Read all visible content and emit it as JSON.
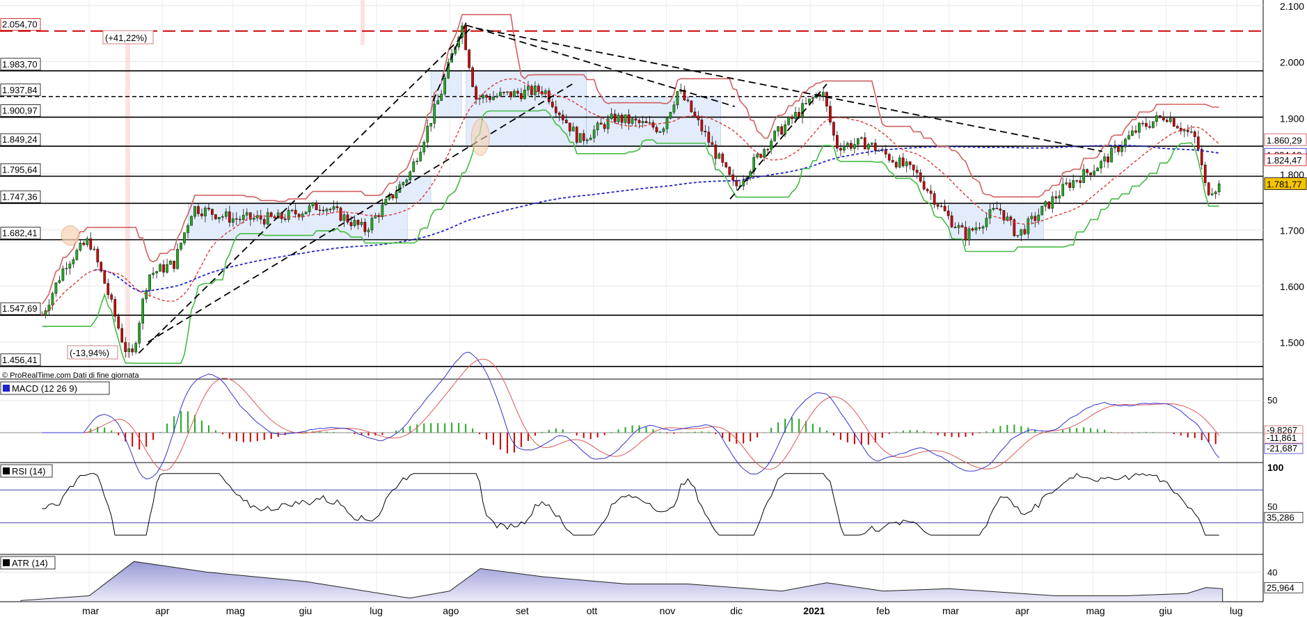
{
  "watermark": "© ProRealTime.com  Dati di fine giornata",
  "months": [
    "mar",
    "apr",
    "mag",
    "giu",
    "lug",
    "ago",
    "set",
    "ott",
    "nov",
    "dic",
    "2021",
    "feb",
    "mar",
    "apr",
    "mag",
    "giu",
    "lug"
  ],
  "price_axis_ticks": [
    "2.100",
    "2.000",
    "1.900",
    "1.800",
    "1.700",
    "1.600",
    "1.500"
  ],
  "horizontal_levels": [
    {
      "label": "2.054,70",
      "value": 2054.7,
      "style": "dashed",
      "color": "#cc0000"
    },
    {
      "label": "1.983,70",
      "value": 1983.7,
      "style": "solid",
      "color": "#000000"
    },
    {
      "label": "1.937,84",
      "value": 1937.84,
      "style": "dashed",
      "color": "#000000"
    },
    {
      "label": "1.900,97",
      "value": 1900.97,
      "style": "solid",
      "color": "#000000"
    },
    {
      "label": "1.849,24",
      "value": 1849.24,
      "style": "solid",
      "color": "#000000"
    },
    {
      "label": "1.795,64",
      "value": 1795.64,
      "style": "solid",
      "color": "#000000"
    },
    {
      "label": "1.747,36",
      "value": 1747.36,
      "style": "solid",
      "color": "#000000"
    },
    {
      "label": "1.682,41",
      "value": 1682.41,
      "style": "solid",
      "color": "#000000"
    },
    {
      "label": "1.547,69",
      "value": 1547.69,
      "style": "solid",
      "color": "#000000"
    },
    {
      "label": "1.456,41",
      "value": 1456.41,
      "style": "solid",
      "color": "#000000"
    }
  ],
  "annotations": {
    "gain": "(+41,22%)",
    "loss": "(-13,94%)"
  },
  "right_price_badges": [
    {
      "label": "1.860,29",
      "color": "#c0504d"
    },
    {
      "label": "1.834,19",
      "color": "#2222cc"
    },
    {
      "label": "1.824,47",
      "color": "#cc0000"
    },
    {
      "label": "1.781,77",
      "color": "#000000",
      "bg": "#f5c400"
    }
  ],
  "macd": {
    "title": "MACD (12 26 9)",
    "tick": "50",
    "badges": [
      "-9,8267",
      "-11,861",
      "-21,687"
    ]
  },
  "rsi": {
    "title": "RSI (14)",
    "ticks": [
      "100",
      "50"
    ],
    "badge": "35,286"
  },
  "atr": {
    "title": "ATR (14)",
    "tick": "40",
    "badge": "25,964"
  },
  "colors": {
    "up": "#22aa22",
    "down": "#cc0000",
    "stop_red": "#d06060",
    "stop_green": "#44bb44",
    "ma_blue": "#2222cc",
    "ma_red": "#dd3333",
    "box": "#dce8fb"
  },
  "chart_data": {
    "type": "candlestick",
    "x_range": [
      "2020-02",
      "2021-06"
    ],
    "y_range": [
      1440,
      2110
    ],
    "price_path": [
      [
        "2020-02-10",
        1548
      ],
      [
        "2020-02-20",
        1640
      ],
      [
        "2020-03-01",
        1682
      ],
      [
        "2020-03-08",
        1600
      ],
      [
        "2020-03-16",
        1490
      ],
      [
        "2020-03-19",
        1470
      ],
      [
        "2020-03-26",
        1620
      ],
      [
        "2020-04-06",
        1640
      ],
      [
        "2020-04-14",
        1740
      ],
      [
        "2020-05-01",
        1720
      ],
      [
        "2020-05-20",
        1720
      ],
      [
        "2020-06-08",
        1745
      ],
      [
        "2020-06-26",
        1700
      ],
      [
        "2020-07-15",
        1800
      ],
      [
        "2020-07-28",
        1940
      ],
      [
        "2020-08-06",
        2070
      ],
      [
        "2020-08-12",
        1935
      ],
      [
        "2020-08-24",
        1940
      ],
      [
        "2020-09-10",
        1950
      ],
      [
        "2020-09-25",
        1860
      ],
      [
        "2020-10-10",
        1900
      ],
      [
        "2020-10-30",
        1880
      ],
      [
        "2020-11-06",
        1950
      ],
      [
        "2020-11-18",
        1865
      ],
      [
        "2020-11-30",
        1775
      ],
      [
        "2020-12-15",
        1860
      ],
      [
        "2021-01-06",
        1950
      ],
      [
        "2021-01-12",
        1850
      ],
      [
        "2021-01-25",
        1855
      ],
      [
        "2021-02-15",
        1800
      ],
      [
        "2021-03-01",
        1720
      ],
      [
        "2021-03-08",
        1690
      ],
      [
        "2021-03-22",
        1740
      ],
      [
        "2021-03-30",
        1690
      ],
      [
        "2021-04-20",
        1780
      ],
      [
        "2021-05-05",
        1820
      ],
      [
        "2021-05-20",
        1880
      ],
      [
        "2021-06-01",
        1905
      ],
      [
        "2021-06-14",
        1860
      ],
      [
        "2021-06-18",
        1770
      ],
      [
        "2021-06-25",
        1781
      ]
    ],
    "macd_range": [
      -45,
      70
    ],
    "rsi_range": [
      0,
      100
    ],
    "atr_range": [
      15,
      55
    ]
  }
}
